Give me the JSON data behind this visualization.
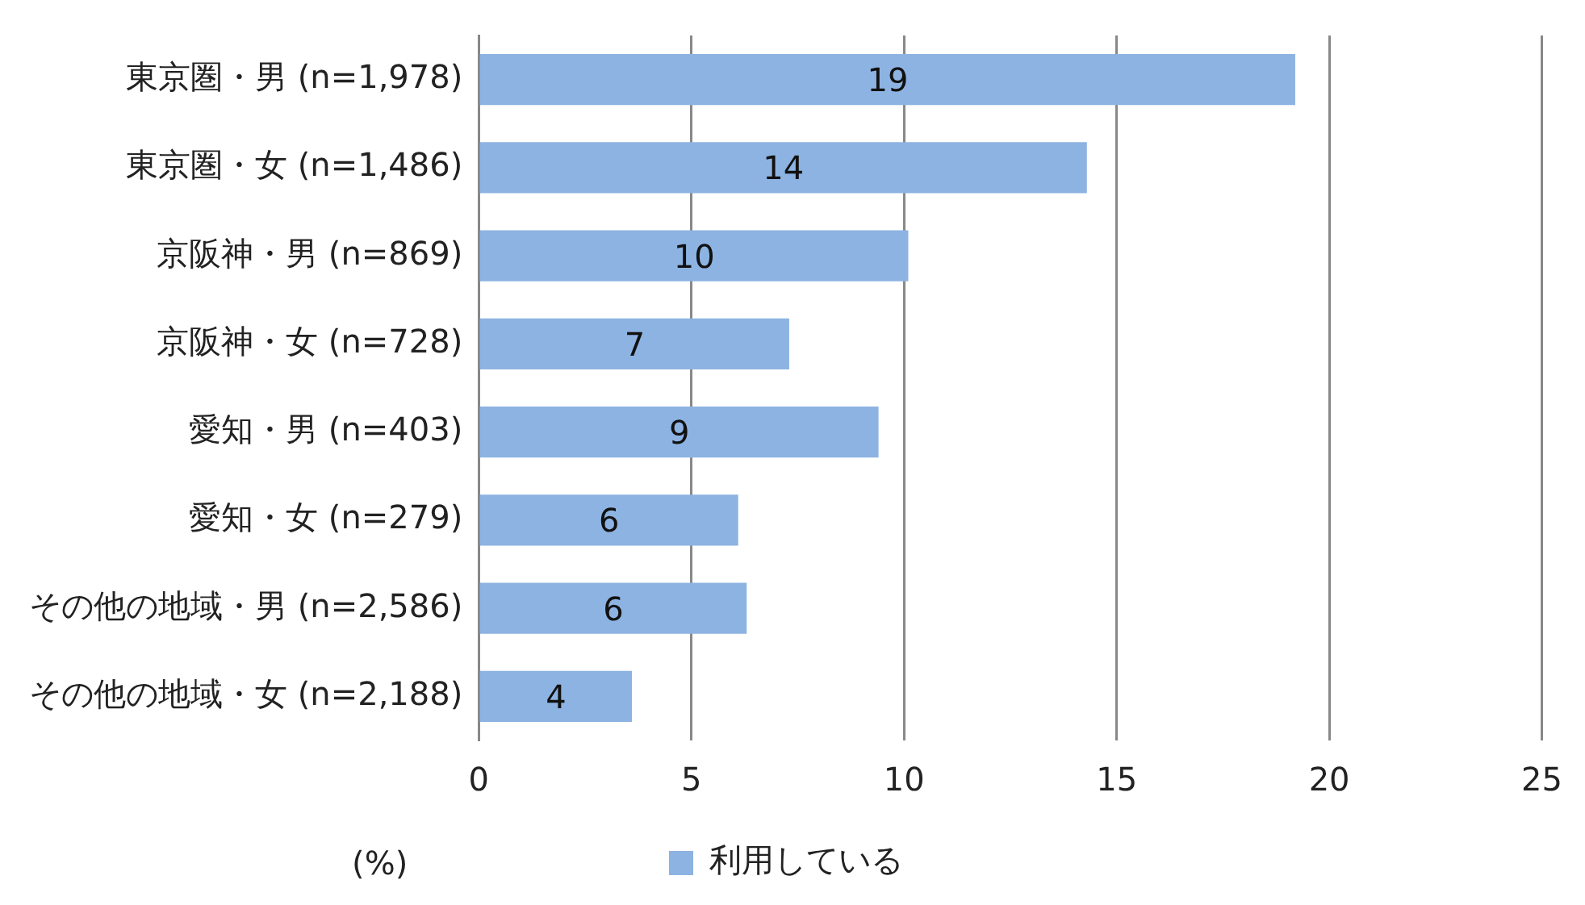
{
  "chart_data": {
    "type": "bar",
    "orientation": "horizontal",
    "categories": [
      "東京圏・男 (n=1,978)",
      "東京圏・女 (n=1,486)",
      "京阪神・男 (n=869)",
      "京阪神・女 (n=728)",
      "愛知・男 (n=403)",
      "愛知・女 (n=279)",
      "その他の地域・男 (n=2,586)",
      "その他の地域・女 (n=2,188)"
    ],
    "series": [
      {
        "name": "利用している",
        "color": "#8db3e2",
        "values": [
          19.2,
          14.3,
          10.1,
          7.3,
          9.4,
          6.1,
          6.3,
          3.6
        ],
        "value_labels": [
          "19",
          "14",
          "10",
          "7",
          "9",
          "6",
          "6",
          "4"
        ]
      }
    ],
    "xlabel": "(%)",
    "xlim": [
      0,
      25
    ],
    "xticks": [
      0,
      5,
      10,
      15,
      20,
      25
    ],
    "grid": "x",
    "legend": "bottom"
  }
}
